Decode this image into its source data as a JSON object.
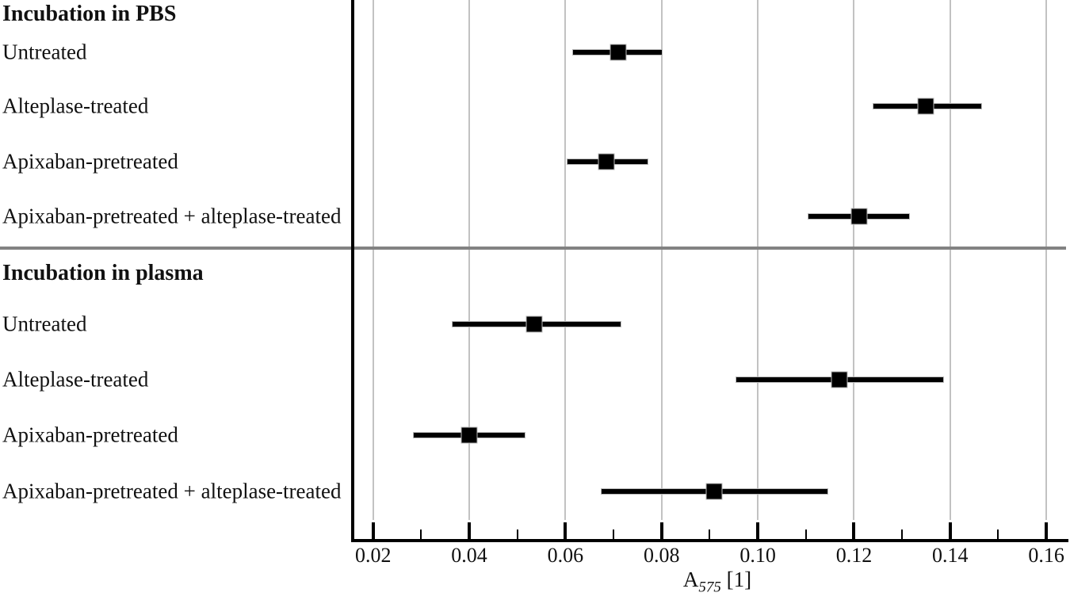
{
  "chart_data": {
    "type": "scatter",
    "subtype": "forest_plot_means_with_error_bars",
    "title": "",
    "xlabel_base": "A",
    "xlabel_sub": "575",
    "xlabel_unit": "[1]",
    "xlabel_text": "A575 [1]",
    "xlim": [
      0.0157,
      0.1655
    ],
    "x_major_ticks": [
      0.02,
      0.04,
      0.06,
      0.08,
      0.1,
      0.12,
      0.14,
      0.16
    ],
    "x_major_tick_labels": [
      "0.02",
      "0.04",
      "0.06",
      "0.08",
      "0.10",
      "0.12",
      "0.14",
      "0.16"
    ],
    "x_minor_ticks": [
      0.03,
      0.05,
      0.07,
      0.09,
      0.11,
      0.13,
      0.15
    ],
    "grid": "vertical gridlines at major ticks",
    "legend": "none",
    "marker_style": "black filled square with horizontal error bar",
    "sections": [
      {
        "title": "Incubation in PBS",
        "rows": [
          {
            "label": "Untreated",
            "value": 0.071,
            "ci_low": 0.0615,
            "ci_high": 0.08
          },
          {
            "label": "Alteplase-treated",
            "value": 0.135,
            "ci_low": 0.124,
            "ci_high": 0.1465
          },
          {
            "label": "Apixaban-pretreated",
            "value": 0.0685,
            "ci_low": 0.0605,
            "ci_high": 0.077
          },
          {
            "label": "Apixaban-pretreated + alteplase-treated",
            "value": 0.121,
            "ci_low": 0.1105,
            "ci_high": 0.1315
          }
        ]
      },
      {
        "title": "Incubation in plasma",
        "rows": [
          {
            "label": "Untreated",
            "value": 0.0535,
            "ci_low": 0.0365,
            "ci_high": 0.0715
          },
          {
            "label": "Alteplase-treated",
            "value": 0.117,
            "ci_low": 0.0955,
            "ci_high": 0.1385
          },
          {
            "label": "Apixaban-pretreated",
            "value": 0.04,
            "ci_low": 0.0285,
            "ci_high": 0.0515
          },
          {
            "label": "Apixaban-pretreated + alteplase-treated",
            "value": 0.091,
            "ci_low": 0.0675,
            "ci_high": 0.1145
          }
        ]
      }
    ],
    "colors": {
      "marker": "#000000",
      "error_bar": "#000000",
      "gridline": "#c2c2c2",
      "section_divider": "#828282",
      "axis": "#000000",
      "background": "#ffffff"
    }
  }
}
